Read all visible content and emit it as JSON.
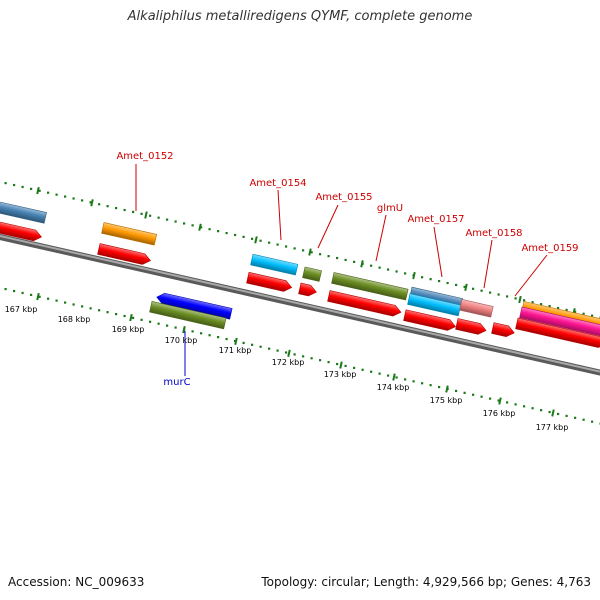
{
  "title": "Alkaliphilus metalliredigens QYMF, complete genome",
  "footer": {
    "accession": "Accession: NC_009633",
    "summary": "Topology: circular; Length: 4,929,566 bp; Genes: 4,763"
  },
  "colors": {
    "backbone": "#7a7a7a",
    "tick": "#1a7a1a",
    "cds_red": "#ff0000",
    "orange": "#ff9900",
    "steel_blue": "#4682b4",
    "sky_blue": "#00bfff",
    "olive": "#6b8e23",
    "salmon": "#f08080",
    "magenta": "#ff1493",
    "dark_blue": "#0000ff",
    "label_red": "#cc0000",
    "label_blue": "#0000cc"
  },
  "gene_labels": [
    {
      "name": "Amet_0152",
      "strand": "forward"
    },
    {
      "name": "Amet_0154",
      "strand": "forward"
    },
    {
      "name": "Amet_0155",
      "strand": "forward"
    },
    {
      "name": "glmU",
      "strand": "forward"
    },
    {
      "name": "Amet_0157",
      "strand": "forward"
    },
    {
      "name": "Amet_0158",
      "strand": "forward"
    },
    {
      "name": "Amet_0159",
      "strand": "forward"
    },
    {
      "name": "murC",
      "strand": "reverse"
    }
  ],
  "kbp_labels": [
    "167 kbp",
    "168 kbp",
    "169 kbp",
    "170 kbp",
    "171 kbp",
    "172 kbp",
    "173 kbp",
    "174 kbp",
    "175 kbp",
    "176 kbp",
    "177 kbp"
  ]
}
